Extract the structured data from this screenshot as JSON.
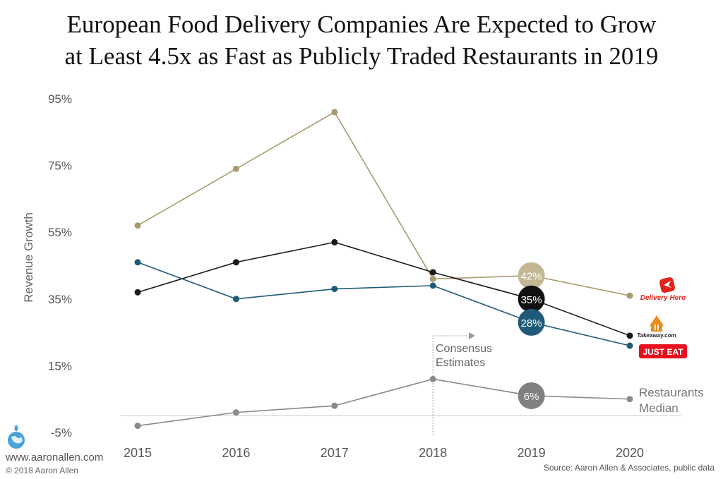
{
  "title": {
    "line1": "European Food Delivery Companies Are Expected to Grow",
    "line2": "at Least 4.5x as Fast as Publicly Traded Restaurants in 2019"
  },
  "footer": {
    "website": "www.aaronallen.com",
    "copyright": "© 2018 Aaron Allen",
    "source": "Source: Aaron Allen & Associates, public data"
  },
  "chart_data": {
    "type": "line",
    "title": "European Food Delivery Companies Are Expected to Grow at Least 4.5x as Fast as Publicly Traded Restaurants in 2019",
    "xlabel": "",
    "ylabel": "Revenue Growth",
    "x": [
      2015,
      2016,
      2017,
      2018,
      2019,
      2020
    ],
    "y_ticks": [
      "95%",
      "75%",
      "55%",
      "35%",
      "15%",
      "-5%"
    ],
    "y_tick_values": [
      95,
      75,
      55,
      35,
      15,
      -5
    ],
    "ylim": [
      -5,
      95
    ],
    "grid": false,
    "legend": "logos at right end of lines",
    "series": [
      {
        "name": "Delivery Hero",
        "color": "#a89a6e",
        "values": [
          57,
          74,
          91,
          41,
          42,
          36
        ],
        "label_2019": "42%",
        "label_color": "#c4b894"
      },
      {
        "name": "Takeaway.com",
        "color": "#1a1a1a",
        "values": [
          37,
          46,
          52,
          43,
          35,
          24
        ],
        "label_2019": "35%",
        "label_color": "#111111"
      },
      {
        "name": "JUST EAT",
        "color": "#1f5a78",
        "values": [
          46,
          35,
          38,
          39,
          28,
          21
        ],
        "label_2019": "28%",
        "label_color": "#1f5a78"
      },
      {
        "name": "Restaurants Median",
        "color": "#8a8a8a",
        "values": [
          -3,
          1,
          3,
          11,
          6,
          5
        ],
        "label_2019": "6%",
        "label_color": "#808080"
      }
    ],
    "annotations": {
      "consensus_line1": "Consensus",
      "consensus_line2": "Estimates",
      "restaurants_line1": "Restaurants",
      "restaurants_line2": "Median",
      "delivery_hero_logo": "Delivery Hero",
      "takeaway_logo": "Takeaway.com",
      "just_eat_logo": "JUST EAT"
    }
  },
  "colors": {
    "axis_text": "#555555",
    "baseline": "#cccccc",
    "delivery_hero_red": "#e2231a",
    "just_eat_red": "#e8101f",
    "takeaway_orange": "#f08c1e"
  },
  "icons": {
    "globe": "globe-icon",
    "arrow": "arrow-right-icon",
    "delivery_hero": "delivery-hero-logo",
    "takeaway": "takeaway-logo",
    "just_eat": "just-eat-logo"
  }
}
